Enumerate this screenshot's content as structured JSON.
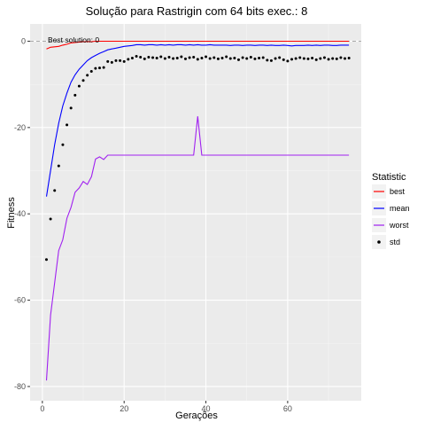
{
  "chart_data": {
    "type": "line",
    "title": "Solução para Rastrigin com 64 bits exec.: 8",
    "xlabel": "Gerações",
    "ylabel": "Fitness",
    "xlim": [
      -3,
      78
    ],
    "ylim": [
      -83.3,
      4
    ],
    "x_ticks": [
      0,
      20,
      40,
      60
    ],
    "y_ticks": [
      0,
      -20,
      -40,
      -60,
      -80
    ],
    "grid": true,
    "legend": {
      "title": "Statistic",
      "placement": "right"
    },
    "annotation": {
      "text": "Best solution: 0",
      "x": 1,
      "y": 0.5
    },
    "reference_line": {
      "y": 0,
      "style": "dashed"
    },
    "series": [
      {
        "name": "best",
        "color": "#ff0000",
        "style": "line",
        "x": [
          1,
          2,
          3,
          4,
          5,
          6,
          7,
          8,
          9,
          10,
          11,
          12,
          13,
          14,
          15,
          16,
          17,
          18,
          19,
          20,
          21,
          22,
          23,
          24,
          25,
          26,
          27,
          28,
          29,
          30,
          31,
          32,
          33,
          34,
          35,
          36,
          37,
          38,
          39,
          40,
          41,
          42,
          43,
          44,
          45,
          46,
          47,
          48,
          49,
          50,
          51,
          52,
          53,
          54,
          55,
          56,
          57,
          58,
          59,
          60,
          61,
          62,
          63,
          64,
          65,
          66,
          67,
          68,
          69,
          70,
          71,
          72,
          73,
          74,
          75
        ],
        "values": [
          -1.8,
          -1.4,
          -1.3,
          -1.2,
          -0.9,
          -0.7,
          -0.4,
          -0.3,
          -0.2,
          -0.1,
          -0.1,
          -0.1,
          0,
          0,
          0,
          0,
          0,
          0,
          0,
          0,
          0,
          0,
          0,
          0,
          0,
          0,
          0,
          0,
          0,
          0,
          0,
          0,
          0,
          0,
          0,
          0,
          0,
          0,
          0,
          0,
          0,
          0,
          0,
          0,
          0,
          0,
          0,
          0,
          0,
          0,
          0,
          0,
          0,
          0,
          0,
          0,
          0,
          0,
          0,
          0,
          0,
          0,
          0,
          0,
          0,
          0,
          0,
          0,
          0,
          0,
          0,
          0,
          0,
          0,
          0
        ]
      },
      {
        "name": "mean",
        "color": "#0000ff",
        "style": "line",
        "x": [
          1,
          2,
          3,
          4,
          5,
          6,
          7,
          8,
          9,
          10,
          11,
          12,
          13,
          14,
          15,
          16,
          17,
          18,
          19,
          20,
          21,
          22,
          23,
          24,
          25,
          26,
          27,
          28,
          29,
          30,
          31,
          32,
          33,
          34,
          35,
          36,
          37,
          38,
          39,
          40,
          41,
          42,
          43,
          44,
          45,
          46,
          47,
          48,
          49,
          50,
          51,
          52,
          53,
          54,
          55,
          56,
          57,
          58,
          59,
          60,
          61,
          62,
          63,
          64,
          65,
          66,
          67,
          68,
          69,
          70,
          71,
          72,
          73,
          74,
          75
        ],
        "values": [
          -36,
          -30,
          -24,
          -19,
          -15,
          -12,
          -9.5,
          -7.8,
          -6.5,
          -5.5,
          -4.5,
          -3.8,
          -3.3,
          -2.8,
          -2.4,
          -2,
          -1.8,
          -1.6,
          -1.4,
          -1.2,
          -1.1,
          -1,
          -0.8,
          -0.8,
          -0.9,
          -0.8,
          -0.8,
          -0.9,
          -0.8,
          -0.9,
          -0.8,
          -0.9,
          -0.8,
          -0.8,
          -0.9,
          -0.8,
          -0.9,
          -0.8,
          -0.9,
          -0.9,
          -0.8,
          -0.9,
          -0.9,
          -0.9,
          -0.9,
          -1,
          -0.9,
          -0.9,
          -1,
          -0.9,
          -0.9,
          -1,
          -0.9,
          -0.9,
          -1,
          -0.9,
          -1,
          -1,
          -0.9,
          -1,
          -1.1,
          -1,
          -1,
          -1,
          -0.9,
          -1,
          -0.9,
          -1,
          -0.9,
          -0.9,
          -1,
          -1,
          -0.9,
          -0.9,
          -0.9
        ]
      },
      {
        "name": "worst",
        "color": "#a020f0",
        "style": "line",
        "x": [
          1,
          2,
          3,
          4,
          5,
          6,
          7,
          8,
          9,
          10,
          11,
          12,
          13,
          14,
          15,
          16,
          17,
          18,
          19,
          20,
          21,
          22,
          23,
          24,
          25,
          26,
          27,
          28,
          29,
          30,
          31,
          32,
          33,
          34,
          35,
          36,
          37,
          38,
          39,
          40,
          41,
          42,
          43,
          44,
          45,
          46,
          47,
          48,
          49,
          50,
          51,
          52,
          53,
          54,
          55,
          56,
          57,
          58,
          59,
          60,
          61,
          62,
          63,
          64,
          65,
          66,
          67,
          68,
          69,
          70,
          71,
          72,
          73,
          74,
          75
        ],
        "values": [
          -78.6,
          -63.5,
          -56,
          -48.5,
          -46,
          -41,
          -38.5,
          -35,
          -34,
          -32.5,
          -33.2,
          -31.4,
          -27.3,
          -26.8,
          -27.4,
          -26.4,
          -26.4,
          -26.4,
          -26.4,
          -26.4,
          -26.4,
          -26.4,
          -26.4,
          -26.4,
          -26.4,
          -26.4,
          -26.4,
          -26.4,
          -26.4,
          -26.4,
          -26.4,
          -26.4,
          -26.4,
          -26.4,
          -26.4,
          -26.4,
          -26.4,
          -17.4,
          -26.4,
          -26.4,
          -26.4,
          -26.4,
          -26.4,
          -26.4,
          -26.4,
          -26.4,
          -26.4,
          -26.4,
          -26.4,
          -26.4,
          -26.4,
          -26.4,
          -26.4,
          -26.4,
          -26.4,
          -26.4,
          -26.4,
          -26.4,
          -26.4,
          -26.4,
          -26.4,
          -26.4,
          -26.4,
          -26.4,
          -26.4,
          -26.4,
          -26.4,
          -26.4,
          -26.4,
          -26.4,
          -26.4,
          -26.4,
          -26.4,
          -26.4,
          -26.4
        ]
      },
      {
        "name": "std",
        "color": "#000000",
        "style": "point",
        "x": [
          1,
          2,
          3,
          4,
          5,
          6,
          7,
          8,
          9,
          10,
          11,
          12,
          13,
          14,
          15,
          16,
          17,
          18,
          19,
          20,
          21,
          22,
          23,
          24,
          25,
          26,
          27,
          28,
          29,
          30,
          31,
          32,
          33,
          34,
          35,
          36,
          37,
          38,
          39,
          40,
          41,
          42,
          43,
          44,
          45,
          46,
          47,
          48,
          49,
          50,
          51,
          52,
          53,
          54,
          55,
          56,
          57,
          58,
          59,
          60,
          61,
          62,
          63,
          64,
          65,
          66,
          67,
          68,
          69,
          70,
          71,
          72,
          73,
          74,
          75
        ],
        "values": [
          -50.6,
          -41.2,
          -34.6,
          -28.9,
          -24,
          -19.4,
          -15.5,
          -12.5,
          -10.4,
          -9.1,
          -7.9,
          -7,
          -6.3,
          -6.2,
          -6.1,
          -4.7,
          -4.9,
          -4.5,
          -4.5,
          -4.7,
          -4.2,
          -3.9,
          -3.5,
          -3.7,
          -4.1,
          -3.7,
          -3.8,
          -3.9,
          -3.6,
          -4,
          -3.7,
          -4,
          -3.9,
          -3.6,
          -4.1,
          -3.8,
          -3.7,
          -4.2,
          -3.9,
          -3.6,
          -4,
          -3.8,
          -4.1,
          -3.9,
          -3.6,
          -4,
          -3.9,
          -4.3,
          -3.8,
          -4,
          -3.7,
          -4.1,
          -3.9,
          -3.8,
          -4.4,
          -4.5,
          -4,
          -3.8,
          -4.3,
          -4.6,
          -4.2,
          -4,
          -3.8,
          -4,
          -4.1,
          -3.9,
          -4.3,
          -4,
          -3.8,
          -4.2,
          -4,
          -4.1,
          -3.8,
          -4,
          -3.9
        ]
      }
    ]
  }
}
